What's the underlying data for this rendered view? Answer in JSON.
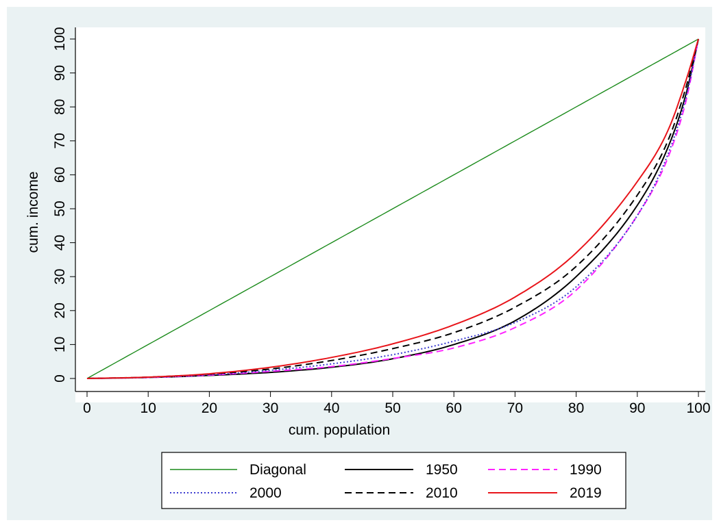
{
  "colors": {
    "background": "#eaf2f3",
    "plot_background": "#ffffff",
    "diagonal": "#1a8a1a",
    "y1950": "#000000",
    "y1990": "#ff22ff",
    "y2000": "#3a3ad0",
    "y2010": "#000000",
    "y2019": "#e8141a"
  },
  "chart_data": {
    "type": "line",
    "title": "",
    "xlabel": "cum. population",
    "ylabel": "cum. income",
    "xlim": [
      0,
      100
    ],
    "ylim": [
      0,
      100
    ],
    "xticks": [
      "0",
      "10",
      "20",
      "30",
      "40",
      "50",
      "60",
      "70",
      "80",
      "90",
      "100"
    ],
    "yticks": [
      "0",
      "10",
      "20",
      "30",
      "40",
      "50",
      "60",
      "70",
      "80",
      "90",
      "100"
    ],
    "x": [
      0,
      10,
      20,
      30,
      40,
      50,
      60,
      70,
      80,
      90,
      95,
      98,
      100
    ],
    "legend_position": "bottom",
    "series": [
      {
        "name": "Diagonal",
        "style": "solid",
        "color": "#1a8a1a",
        "values": [
          0,
          10,
          20,
          30,
          40,
          50,
          60,
          70,
          80,
          90,
          95,
          98,
          100
        ]
      },
      {
        "name": "1950",
        "style": "solid",
        "color": "#000000",
        "values": [
          0,
          0.3,
          0.9,
          1.8,
          3.3,
          5.8,
          10,
          17,
          30,
          51,
          68,
          84,
          100
        ]
      },
      {
        "name": "1990",
        "style": "dashed",
        "color": "#ff22ff",
        "values": [
          0,
          0.3,
          1.0,
          2.1,
          3.5,
          5.9,
          9,
          15,
          26,
          48,
          65,
          82,
          100
        ]
      },
      {
        "name": "2000",
        "style": "dotted",
        "color": "#3a3ad0",
        "values": [
          0,
          0.3,
          1.1,
          2.4,
          4.3,
          7,
          11,
          16.5,
          27,
          48,
          66,
          83,
          100
        ]
      },
      {
        "name": "2010",
        "style": "dashed",
        "color": "#000000",
        "values": [
          0,
          0.4,
          1.3,
          2.8,
          5.3,
          8.8,
          13.5,
          21,
          33,
          54,
          70,
          86,
          100
        ]
      },
      {
        "name": "2019",
        "style": "solid",
        "color": "#e8141a",
        "values": [
          0,
          0.4,
          1.4,
          3.3,
          6.2,
          10.2,
          15.8,
          24,
          37,
          58,
          73,
          88,
          100
        ]
      }
    ],
    "legend": {
      "rows": [
        [
          "Diagonal",
          "1950",
          "1990"
        ],
        [
          "2000",
          "2010",
          "2019"
        ]
      ]
    }
  }
}
